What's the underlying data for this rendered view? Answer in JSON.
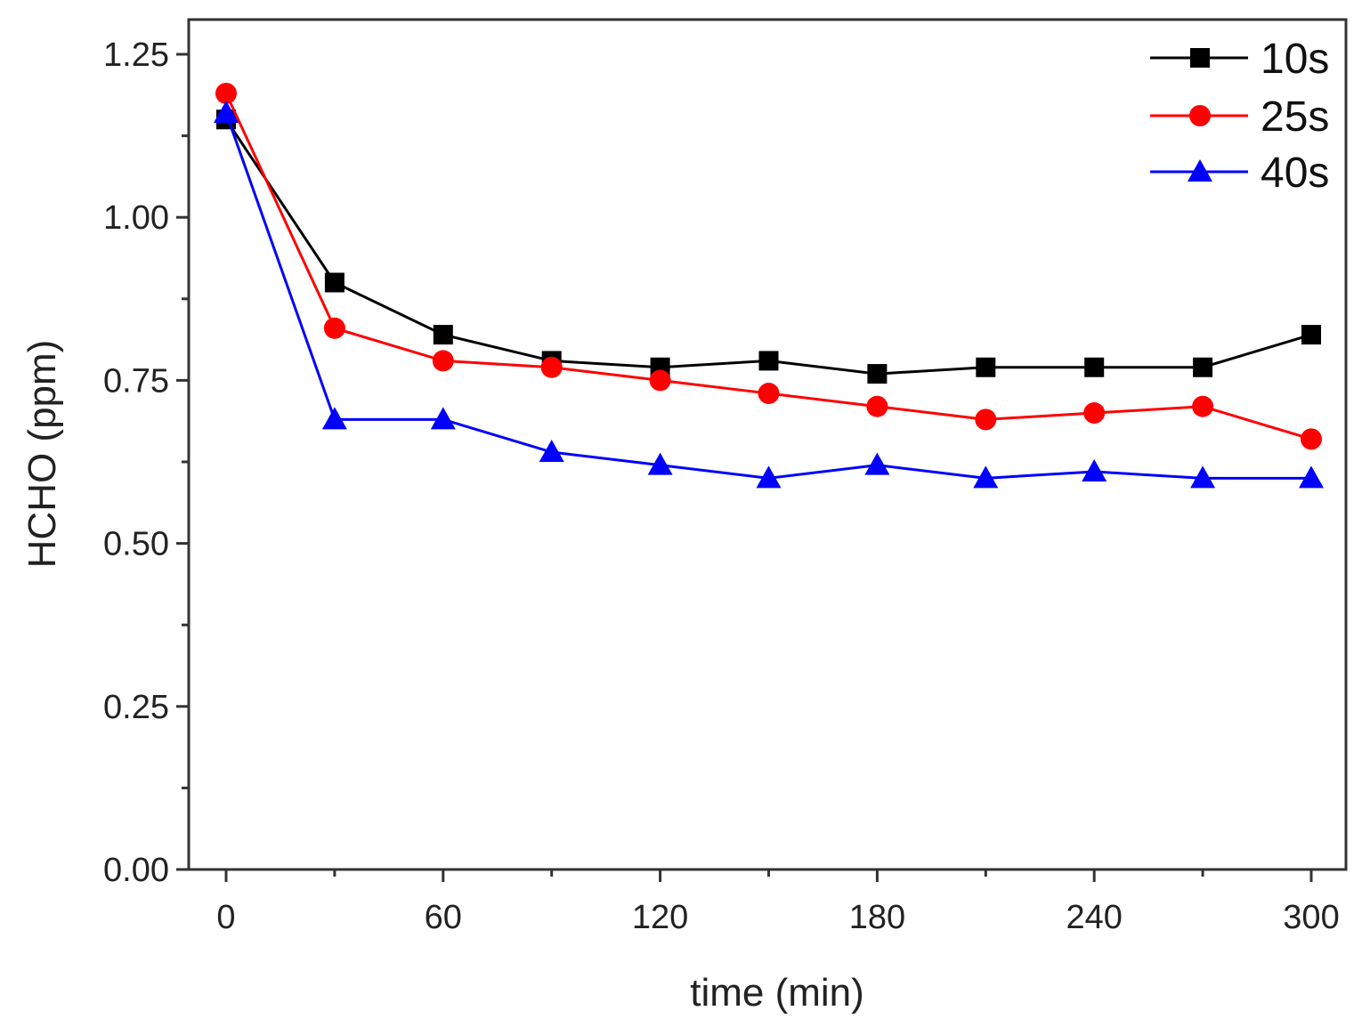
{
  "chart_data": {
    "type": "line",
    "title": "",
    "xlabel": "time (min)",
    "ylabel": "HCHO (ppm)",
    "xlim": [
      -10,
      305
    ],
    "ylim": [
      0,
      1.3
    ],
    "x_ticks": [
      0,
      60,
      120,
      180,
      240,
      300
    ],
    "x_tick_labels": [
      "0",
      "60",
      "120",
      "180",
      "240",
      "300"
    ],
    "y_ticks": [
      0,
      0.25,
      0.5,
      0.75,
      1.0,
      1.25
    ],
    "y_tick_labels": [
      "0.00",
      "0.25",
      "0.50",
      "0.75",
      "1.00",
      "1.25"
    ],
    "grid": false,
    "legend_position": "top-right",
    "x": [
      0,
      30,
      60,
      90,
      120,
      150,
      180,
      210,
      240,
      270,
      300
    ],
    "series": [
      {
        "name": "10s",
        "marker": "square",
        "color": "#000000",
        "values": [
          1.15,
          0.9,
          0.82,
          0.78,
          0.77,
          0.78,
          0.76,
          0.77,
          0.77,
          0.77,
          0.82
        ]
      },
      {
        "name": "25s",
        "marker": "circle",
        "color": "#ff0000",
        "values": [
          1.19,
          0.83,
          0.78,
          0.77,
          0.75,
          0.73,
          0.71,
          0.69,
          0.7,
          0.71,
          0.66
        ]
      },
      {
        "name": "40s",
        "marker": "triangle",
        "color": "#0000ff",
        "values": [
          1.16,
          0.69,
          0.69,
          0.64,
          0.62,
          0.6,
          0.62,
          0.6,
          0.61,
          0.6,
          0.6
        ]
      }
    ]
  }
}
